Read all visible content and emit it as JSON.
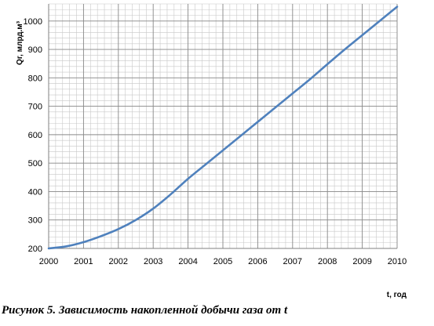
{
  "chart_data": {
    "type": "line",
    "xlabel": "t, год",
    "ylabel": "Qг, млрд.м³",
    "x_ticks": [
      "2000",
      "2001",
      "2002",
      "2003",
      "2004",
      "2005",
      "2006",
      "2007",
      "2008",
      "2009",
      "2010"
    ],
    "y_ticks": [
      "200",
      "300",
      "400",
      "500",
      "600",
      "700",
      "800",
      "900",
      "1000"
    ],
    "xlim": [
      2000,
      2010
    ],
    "ylim": [
      200,
      1060
    ],
    "grid": true,
    "minor_grid": true,
    "line_color": "#4f81bd",
    "series": [
      {
        "x": [
          2000,
          2000.5,
          2001,
          2001.5,
          2002,
          2002.5,
          2003,
          2003.5,
          2004,
          2004.5,
          2005,
          2005.5,
          2006,
          2006.5,
          2007,
          2007.5,
          2008,
          2008.5,
          2009,
          2009.5,
          2010
        ],
        "y": [
          200,
          207,
          222,
          243,
          268,
          300,
          340,
          390,
          445,
          495,
          545,
          595,
          645,
          695,
          745,
          795,
          848,
          900,
          950,
          1000,
          1050
        ]
      }
    ]
  },
  "caption": "Рисунок 5. Зависимость накопленной добычи газа от t"
}
